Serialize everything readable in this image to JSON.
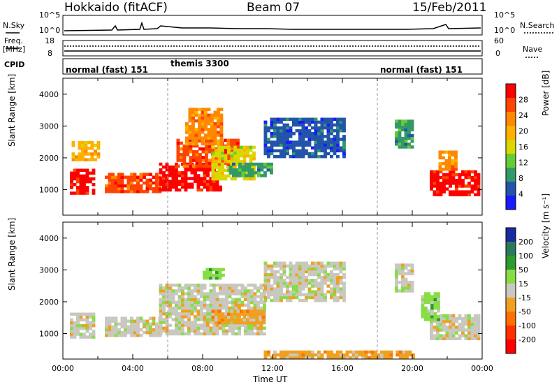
{
  "header": {
    "station": "Hokkaido (fitACF)",
    "beam": "Beam 07",
    "date": "15/Feb/2011"
  },
  "strip_labels": {
    "nsky": "N.Sky",
    "freq_line1": "Freq.",
    "freq_line2": "[MHz]",
    "cpid": "CPID",
    "nsearch": "N.Search",
    "nave": "Nave",
    "nsky_ticks": [
      "10^5",
      "10^0"
    ],
    "nsearch_ticks": [
      "10^5",
      "10^0"
    ],
    "freq_ticks": [
      "18",
      "8"
    ],
    "nave_ticks": [
      "60",
      "0"
    ]
  },
  "cpid_segments": [
    {
      "label": "normal (fast) 151",
      "start_hour": 0
    },
    {
      "label": "themis 3300",
      "start_hour": 6
    },
    {
      "label": "normal (fast) 151",
      "start_hour": 18
    }
  ],
  "chart_data": [
    {
      "type": "heatmap",
      "panel": "power",
      "xlabel": "",
      "ylabel": "Slant Range [km]",
      "xlim": [
        0,
        24
      ],
      "ylim": [
        200,
        4500
      ],
      "yticks": [
        1000,
        2000,
        3000,
        4000
      ],
      "colorbar": {
        "label": "Power [dB]",
        "ticks": [
          "28",
          "24",
          "20",
          "16",
          "12",
          "8",
          "4"
        ],
        "colors": [
          "#ff0000",
          "#ff4400",
          "#ff8800",
          "#ffb000",
          "#d8d800",
          "#66cc33",
          "#339966",
          "#2255aa",
          "#1a1aff"
        ]
      },
      "regions": [
        {
          "t0": 0.4,
          "t1": 1.8,
          "r0": 850,
          "r1": 1600,
          "level": 0
        },
        {
          "t0": 2.4,
          "t1": 5.5,
          "r0": 900,
          "r1": 1500,
          "level": 1
        },
        {
          "t0": 5.5,
          "t1": 9.0,
          "r0": 950,
          "r1": 1800,
          "level": 0
        },
        {
          "t0": 6.5,
          "t1": 10.0,
          "r0": 1700,
          "r1": 2600,
          "level": 1
        },
        {
          "t0": 8.5,
          "t1": 11.0,
          "r0": 1300,
          "r1": 2300,
          "level": 4
        },
        {
          "t0": 9.5,
          "t1": 12.0,
          "r0": 1400,
          "r1": 1800,
          "level": 6
        },
        {
          "t0": 11.5,
          "t1": 16.0,
          "r0": 2000,
          "r1": 3200,
          "level": 7
        },
        {
          "t0": 7.0,
          "t1": 9.0,
          "r0": 2400,
          "r1": 3500,
          "level": 2
        },
        {
          "t0": 19.0,
          "t1": 20.0,
          "r0": 2300,
          "r1": 3200,
          "level": 6
        },
        {
          "t0": 21.0,
          "t1": 23.8,
          "r0": 800,
          "r1": 1600,
          "level": 0
        },
        {
          "t0": 21.5,
          "t1": 22.5,
          "r0": 1600,
          "r1": 2200,
          "level": 2
        },
        {
          "t0": 0.5,
          "t1": 2.0,
          "r0": 1900,
          "r1": 2500,
          "level": 3
        }
      ]
    },
    {
      "type": "heatmap",
      "panel": "velocity",
      "xlabel": "Time UT",
      "ylabel": "Slant Range [km]",
      "xlim": [
        0,
        24
      ],
      "ylim": [
        200,
        4500
      ],
      "xticks": [
        "00:00",
        "04:00",
        "08:00",
        "12:00",
        "16:00",
        "20:00",
        "00:00"
      ],
      "yticks": [
        1000,
        2000,
        3000,
        4000
      ],
      "colorbar": {
        "label": "Velocity [m s⁻¹]",
        "ticks": [
          "200",
          "100",
          "50",
          "15",
          "-15",
          "-50",
          "-100",
          "-200"
        ],
        "colors": [
          "#1a2aa0",
          "#2a7a5a",
          "#2e9a30",
          "#88dd44",
          "#c8c8c0",
          "#f0a020",
          "#ff7000",
          "#ff3000",
          "#ff0000"
        ]
      },
      "regions": [
        {
          "t0": 0.4,
          "t1": 1.8,
          "r0": 850,
          "r1": 1600,
          "level": 4
        },
        {
          "t0": 2.4,
          "t1": 5.5,
          "r0": 900,
          "r1": 1500,
          "level": 4
        },
        {
          "t0": 5.5,
          "t1": 11.5,
          "r0": 950,
          "r1": 2500,
          "level": 4
        },
        {
          "t0": 8.5,
          "t1": 11.5,
          "r0": 1300,
          "r1": 1700,
          "level": 5
        },
        {
          "t0": 11.5,
          "t1": 16.0,
          "r0": 2000,
          "r1": 3200,
          "level": 4
        },
        {
          "t0": 8.0,
          "t1": 9.2,
          "r0": 2700,
          "r1": 3000,
          "level": 3
        },
        {
          "t0": 19.0,
          "t1": 20.0,
          "r0": 2300,
          "r1": 3200,
          "level": 4
        },
        {
          "t0": 21.0,
          "t1": 23.8,
          "r0": 800,
          "r1": 1600,
          "level": 4
        },
        {
          "t0": 20.5,
          "t1": 21.5,
          "r0": 1400,
          "r1": 2300,
          "level": 3
        },
        {
          "t0": 11.5,
          "t1": 20.0,
          "r0": 200,
          "r1": 450,
          "level": 5
        }
      ]
    }
  ]
}
